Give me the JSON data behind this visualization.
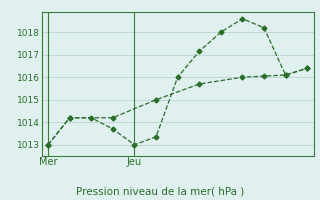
{
  "background_color": "#dff0ee",
  "grid_color": "#c0d8d4",
  "line_color": "#2a6e2a",
  "spine_color": "#3a7a3a",
  "title": "Pression niveau de la mer( hPa )",
  "xlabel_mer": "Mer",
  "xlabel_jeu": "Jeu",
  "ylim": [
    1012.5,
    1018.9
  ],
  "yticks": [
    1013,
    1014,
    1015,
    1016,
    1017,
    1018
  ],
  "line1_x": [
    0,
    1,
    2,
    3,
    4,
    5,
    6,
    7,
    8,
    9,
    10,
    11,
    12
  ],
  "line1_y": [
    1013.0,
    1014.2,
    1014.2,
    1013.7,
    1013.0,
    1013.35,
    1016.0,
    1017.15,
    1018.0,
    1018.6,
    1018.2,
    1016.1,
    1016.4
  ],
  "line2_x": [
    0,
    1,
    3,
    5,
    7,
    9,
    10,
    11,
    12
  ],
  "line2_y": [
    1013.0,
    1014.2,
    1014.2,
    1015.0,
    1015.7,
    1016.0,
    1016.05,
    1016.1,
    1016.4
  ],
  "mer_x": 0,
  "jeu_x": 4,
  "xlim": [
    -0.3,
    12.3
  ]
}
